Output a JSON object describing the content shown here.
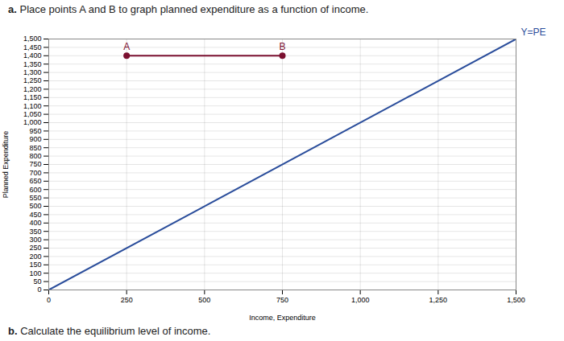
{
  "chart_data": {
    "type": "line",
    "title": "a. Place points A and B to graph planned expenditure as a function of income.",
    "caption": "b. Calculate the equilibrium level of income.",
    "x_label": "Income, Expenditure",
    "y_label": "Planned Expenditure",
    "xlim": [
      0,
      1500
    ],
    "ylim": [
      0,
      1500
    ],
    "xticks": [
      0,
      250,
      500,
      750,
      {
        "value": 1000,
        "label": "1,000"
      },
      {
        "value": 1250,
        "label": "1,250"
      },
      {
        "value": 1500,
        "label": "1,500"
      }
    ],
    "yticks": [
      0,
      50,
      100,
      150,
      200,
      250,
      300,
      350,
      400,
      450,
      500,
      550,
      600,
      650,
      700,
      750,
      800,
      850,
      900,
      950,
      {
        "value": 1000,
        "label": "1,000"
      },
      {
        "value": 1050,
        "label": "1,050"
      },
      {
        "value": 1100,
        "label": "1,100"
      },
      {
        "value": 1150,
        "label": "1,150"
      },
      {
        "value": 1200,
        "label": "1,200"
      },
      {
        "value": 1250,
        "label": "1,250"
      },
      {
        "value": 1300,
        "label": "1,300"
      },
      {
        "value": 1350,
        "label": "1,350"
      },
      {
        "value": 1400,
        "label": "1,400"
      },
      {
        "value": 1450,
        "label": "1,450"
      },
      {
        "value": 1500,
        "label": "1,500"
      }
    ],
    "grid": true,
    "series": [
      {
        "color": "#2a4d9b",
        "x": [
          0,
          1500
        ],
        "values": [
          0,
          1500
        ]
      },
      {
        "color": "#7b1030",
        "x": [
          250,
          750
        ],
        "values": [
          1400,
          1400
        ],
        "marker": "circle"
      }
    ],
    "annotations": [
      {
        "text": "Y=PE",
        "x": 1500,
        "y": 1500,
        "color": "#2a4d9b"
      },
      {
        "text": "A",
        "x": 250,
        "y": 1400,
        "color": "#7b1030"
      },
      {
        "text": "B",
        "x": 750,
        "y": 1400,
        "color": "#7b1030"
      }
    ]
  }
}
